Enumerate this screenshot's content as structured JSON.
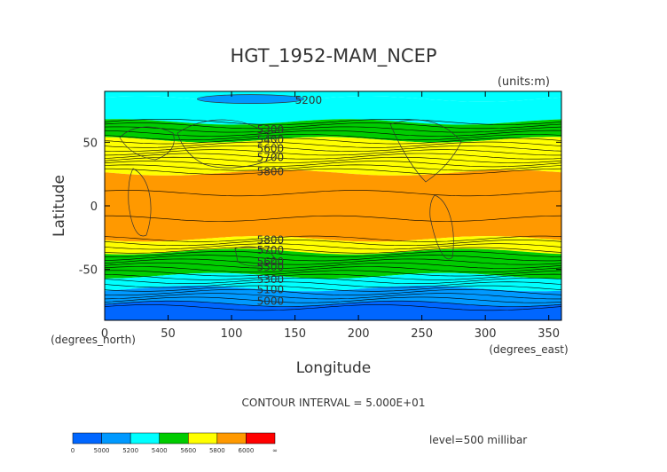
{
  "chart_data": {
    "type": "heatmap",
    "title": "HGT_1952-MAM_NCEP",
    "units_label": "(units:m)",
    "xlabel": "Longitude",
    "ylabel": "Latitude",
    "x_unit_label": "(degrees_east)",
    "y_unit_label": "(degrees_north)",
    "xlim": [
      0,
      360
    ],
    "ylim": [
      -90,
      90
    ],
    "x_ticks": [
      0,
      50,
      100,
      150,
      200,
      250,
      300,
      350
    ],
    "y_ticks": [
      -50,
      0,
      50
    ],
    "contour_interval_text": "CONTOUR INTERVAL = 5.000E+01",
    "level_text": "level=500 millibar",
    "contour_labels": [
      {
        "text": "5200",
        "x": 150,
        "y": 83
      },
      {
        "text": "5300",
        "x": 120,
        "y": 60
      },
      {
        "text": "5400",
        "x": 120,
        "y": 52
      },
      {
        "text": "5600",
        "x": 120,
        "y": 45
      },
      {
        "text": "5700",
        "x": 120,
        "y": 38
      },
      {
        "text": "5800",
        "x": 120,
        "y": 27
      },
      {
        "text": "5800",
        "x": 120,
        "y": -27
      },
      {
        "text": "5700",
        "x": 120,
        "y": -35
      },
      {
        "text": "5600",
        "x": 120,
        "y": -44
      },
      {
        "text": "5500",
        "x": 120,
        "y": -48
      },
      {
        "text": "5300",
        "x": 120,
        "y": -58
      },
      {
        "text": "5100",
        "x": 120,
        "y": -66
      },
      {
        "text": "5000",
        "x": 120,
        "y": -75
      }
    ],
    "bands": [
      {
        "lat": [
          84,
          90
        ],
        "level": "5200-5400",
        "color": "#00ffff"
      },
      {
        "lat": [
          66,
          84
        ],
        "level": "5200-5400",
        "color": "#00ffff"
      },
      {
        "lat": [
          52,
          66
        ],
        "level": "5400-5600",
        "color": "#00cc00"
      },
      {
        "lat": [
          42,
          52
        ],
        "level": "5600-5800",
        "color": "#ffff00"
      },
      {
        "lat": [
          26,
          42
        ],
        "level": "5600-5800",
        "color": "#ffff00"
      },
      {
        "lat": [
          -26,
          26
        ],
        "level": "5800-6000",
        "color": "#ff9900"
      },
      {
        "lat": [
          -36,
          -26
        ],
        "level": "5600-5800",
        "color": "#ffff00"
      },
      {
        "lat": [
          -55,
          -36
        ],
        "level": "5400-5600",
        "color": "#00cc00"
      },
      {
        "lat": [
          -65,
          -55
        ],
        "level": "5200-5400",
        "color": "#00ffff"
      },
      {
        "lat": [
          -77,
          -65
        ],
        "level": "5000-5200",
        "color": "#0099ff"
      },
      {
        "lat": [
          -90,
          -77
        ],
        "level": "< 5000",
        "color": "#0066ff"
      }
    ],
    "legend": {
      "labels": [
        "0",
        "5000",
        "5200",
        "5400",
        "5600",
        "5800",
        "6000",
        "∞"
      ],
      "colors": [
        "#0066ff",
        "#0099ff",
        "#00ffff",
        "#00cc00",
        "#ffff00",
        "#ff9900",
        "#ff0000"
      ]
    },
    "grid": false
  }
}
